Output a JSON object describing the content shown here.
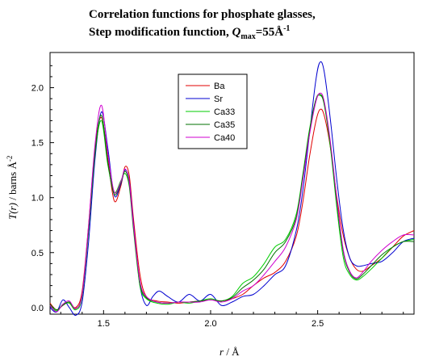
{
  "chart_data": {
    "type": "line",
    "title_line1": "Correlation functions for phosphate glasses,",
    "title_line2_prefix": "Step modification function, ",
    "title_q": "Q",
    "title_q_sub": "max",
    "title_eq": "=55Å",
    "title_exp": "-1",
    "xlabel_var": "r",
    "xlabel_unit": " / Å",
    "ylabel_var": "T(r)",
    "ylabel_unit": " / barns Å",
    "ylabel_exp": "-2",
    "xlim": [
      1.25,
      2.95
    ],
    "ylim": [
      -0.06,
      2.32
    ],
    "xticks": [
      1.5,
      2.0,
      2.5
    ],
    "yticks": [
      0.0,
      0.5,
      1.0,
      1.5,
      2.0
    ],
    "xtick_labels": [
      "1.5",
      "2.0",
      "2.5"
    ],
    "ytick_labels": [
      "0.0",
      "0.5",
      "1.0",
      "1.5",
      "2.0"
    ],
    "legend_position": "upper-center",
    "series": [
      {
        "name": "Ba",
        "color": "#e00000",
        "x": [
          1.25,
          1.28,
          1.31,
          1.34,
          1.37,
          1.4,
          1.43,
          1.46,
          1.49,
          1.52,
          1.55,
          1.58,
          1.6,
          1.62,
          1.64,
          1.67,
          1.7,
          1.75,
          1.8,
          1.85,
          1.9,
          1.95,
          2.0,
          2.05,
          2.1,
          2.15,
          2.2,
          2.25,
          2.3,
          2.35,
          2.4,
          2.43,
          2.46,
          2.49,
          2.51,
          2.53,
          2.56,
          2.59,
          2.62,
          2.65,
          2.68,
          2.71,
          2.75,
          2.8,
          2.85,
          2.9,
          2.95
        ],
        "y": [
          0.04,
          -0.02,
          0.02,
          0.05,
          0.0,
          0.15,
          0.75,
          1.45,
          1.73,
          1.35,
          0.97,
          1.1,
          1.28,
          1.2,
          0.8,
          0.3,
          0.1,
          0.06,
          0.05,
          0.04,
          0.05,
          0.06,
          0.07,
          0.06,
          0.08,
          0.12,
          0.2,
          0.27,
          0.32,
          0.42,
          0.65,
          0.95,
          1.35,
          1.68,
          1.8,
          1.75,
          1.45,
          1.0,
          0.65,
          0.45,
          0.35,
          0.33,
          0.38,
          0.45,
          0.55,
          0.65,
          0.7
        ]
      },
      {
        "name": "Sr",
        "color": "#0000d0",
        "x": [
          1.25,
          1.28,
          1.31,
          1.34,
          1.37,
          1.4,
          1.43,
          1.46,
          1.49,
          1.52,
          1.55,
          1.58,
          1.6,
          1.62,
          1.64,
          1.67,
          1.7,
          1.73,
          1.76,
          1.8,
          1.85,
          1.9,
          1.95,
          2.0,
          2.05,
          2.1,
          2.15,
          2.2,
          2.25,
          2.3,
          2.35,
          2.4,
          2.43,
          2.46,
          2.49,
          2.51,
          2.53,
          2.56,
          2.59,
          2.62,
          2.65,
          2.68,
          2.71,
          2.75,
          2.8,
          2.85,
          2.9,
          2.95
        ],
        "y": [
          0.0,
          -0.04,
          0.07,
          0.0,
          -0.07,
          0.05,
          0.6,
          1.35,
          1.78,
          1.45,
          1.02,
          1.12,
          1.25,
          1.15,
          0.75,
          0.2,
          0.02,
          0.1,
          0.15,
          0.1,
          0.05,
          0.12,
          0.06,
          0.12,
          0.02,
          0.05,
          0.1,
          0.12,
          0.2,
          0.3,
          0.38,
          0.7,
          1.05,
          1.55,
          2.05,
          2.23,
          2.15,
          1.7,
          1.15,
          0.7,
          0.45,
          0.38,
          0.38,
          0.4,
          0.42,
          0.5,
          0.6,
          0.63
        ]
      },
      {
        "name": "Ca33",
        "color": "#00cc00",
        "x": [
          1.25,
          1.28,
          1.31,
          1.34,
          1.37,
          1.4,
          1.43,
          1.46,
          1.49,
          1.52,
          1.55,
          1.58,
          1.6,
          1.62,
          1.64,
          1.67,
          1.7,
          1.75,
          1.8,
          1.85,
          1.9,
          1.95,
          2.0,
          2.05,
          2.1,
          2.15,
          2.2,
          2.25,
          2.3,
          2.35,
          2.4,
          2.43,
          2.46,
          2.49,
          2.51,
          2.53,
          2.56,
          2.59,
          2.62,
          2.65,
          2.68,
          2.71,
          2.75,
          2.8,
          2.85,
          2.9,
          2.95
        ],
        "y": [
          0.02,
          -0.03,
          0.03,
          0.04,
          -0.02,
          0.1,
          0.7,
          1.4,
          1.7,
          1.3,
          1.05,
          1.15,
          1.22,
          1.1,
          0.7,
          0.2,
          0.08,
          0.04,
          0.03,
          0.05,
          0.04,
          0.06,
          0.08,
          0.06,
          0.1,
          0.22,
          0.28,
          0.4,
          0.55,
          0.62,
          0.85,
          1.2,
          1.6,
          1.88,
          1.93,
          1.85,
          1.45,
          0.9,
          0.45,
          0.3,
          0.25,
          0.28,
          0.35,
          0.45,
          0.55,
          0.6,
          0.62
        ]
      },
      {
        "name": "Ca35",
        "color": "#007000",
        "x": [
          1.25,
          1.28,
          1.31,
          1.34,
          1.37,
          1.4,
          1.43,
          1.46,
          1.49,
          1.52,
          1.55,
          1.58,
          1.6,
          1.62,
          1.64,
          1.67,
          1.7,
          1.75,
          1.8,
          1.85,
          1.9,
          1.95,
          2.0,
          2.05,
          2.1,
          2.15,
          2.2,
          2.25,
          2.3,
          2.35,
          2.4,
          2.43,
          2.46,
          2.49,
          2.51,
          2.53,
          2.56,
          2.59,
          2.62,
          2.65,
          2.68,
          2.71,
          2.75,
          2.8,
          2.85,
          2.9,
          2.95
        ],
        "y": [
          0.03,
          -0.02,
          0.02,
          0.05,
          -0.01,
          0.12,
          0.72,
          1.42,
          1.75,
          1.32,
          1.03,
          1.13,
          1.24,
          1.12,
          0.72,
          0.22,
          0.09,
          0.05,
          0.04,
          0.05,
          0.05,
          0.06,
          0.07,
          0.06,
          0.09,
          0.18,
          0.25,
          0.35,
          0.5,
          0.6,
          0.82,
          1.18,
          1.58,
          1.88,
          1.94,
          1.86,
          1.48,
          0.95,
          0.5,
          0.32,
          0.26,
          0.3,
          0.38,
          0.48,
          0.55,
          0.6,
          0.6
        ]
      },
      {
        "name": "Ca40",
        "color": "#d000d0",
        "x": [
          1.25,
          1.28,
          1.31,
          1.34,
          1.37,
          1.4,
          1.43,
          1.46,
          1.49,
          1.52,
          1.55,
          1.58,
          1.6,
          1.62,
          1.64,
          1.67,
          1.7,
          1.75,
          1.8,
          1.85,
          1.9,
          1.95,
          2.0,
          2.05,
          2.1,
          2.15,
          2.2,
          2.25,
          2.3,
          2.35,
          2.4,
          2.43,
          2.46,
          2.49,
          2.51,
          2.53,
          2.56,
          2.59,
          2.62,
          2.65,
          2.68,
          2.71,
          2.75,
          2.8,
          2.85,
          2.9,
          2.95
        ],
        "y": [
          0.02,
          -0.04,
          0.03,
          0.06,
          -0.01,
          0.12,
          0.75,
          1.48,
          1.84,
          1.4,
          1.05,
          1.14,
          1.26,
          1.14,
          0.74,
          0.24,
          0.1,
          0.05,
          0.04,
          0.05,
          0.05,
          0.05,
          0.07,
          0.05,
          0.08,
          0.15,
          0.2,
          0.3,
          0.42,
          0.55,
          0.8,
          1.15,
          1.55,
          1.86,
          1.95,
          1.88,
          1.5,
          0.98,
          0.52,
          0.33,
          0.27,
          0.32,
          0.42,
          0.52,
          0.6,
          0.66,
          0.66
        ]
      }
    ]
  }
}
